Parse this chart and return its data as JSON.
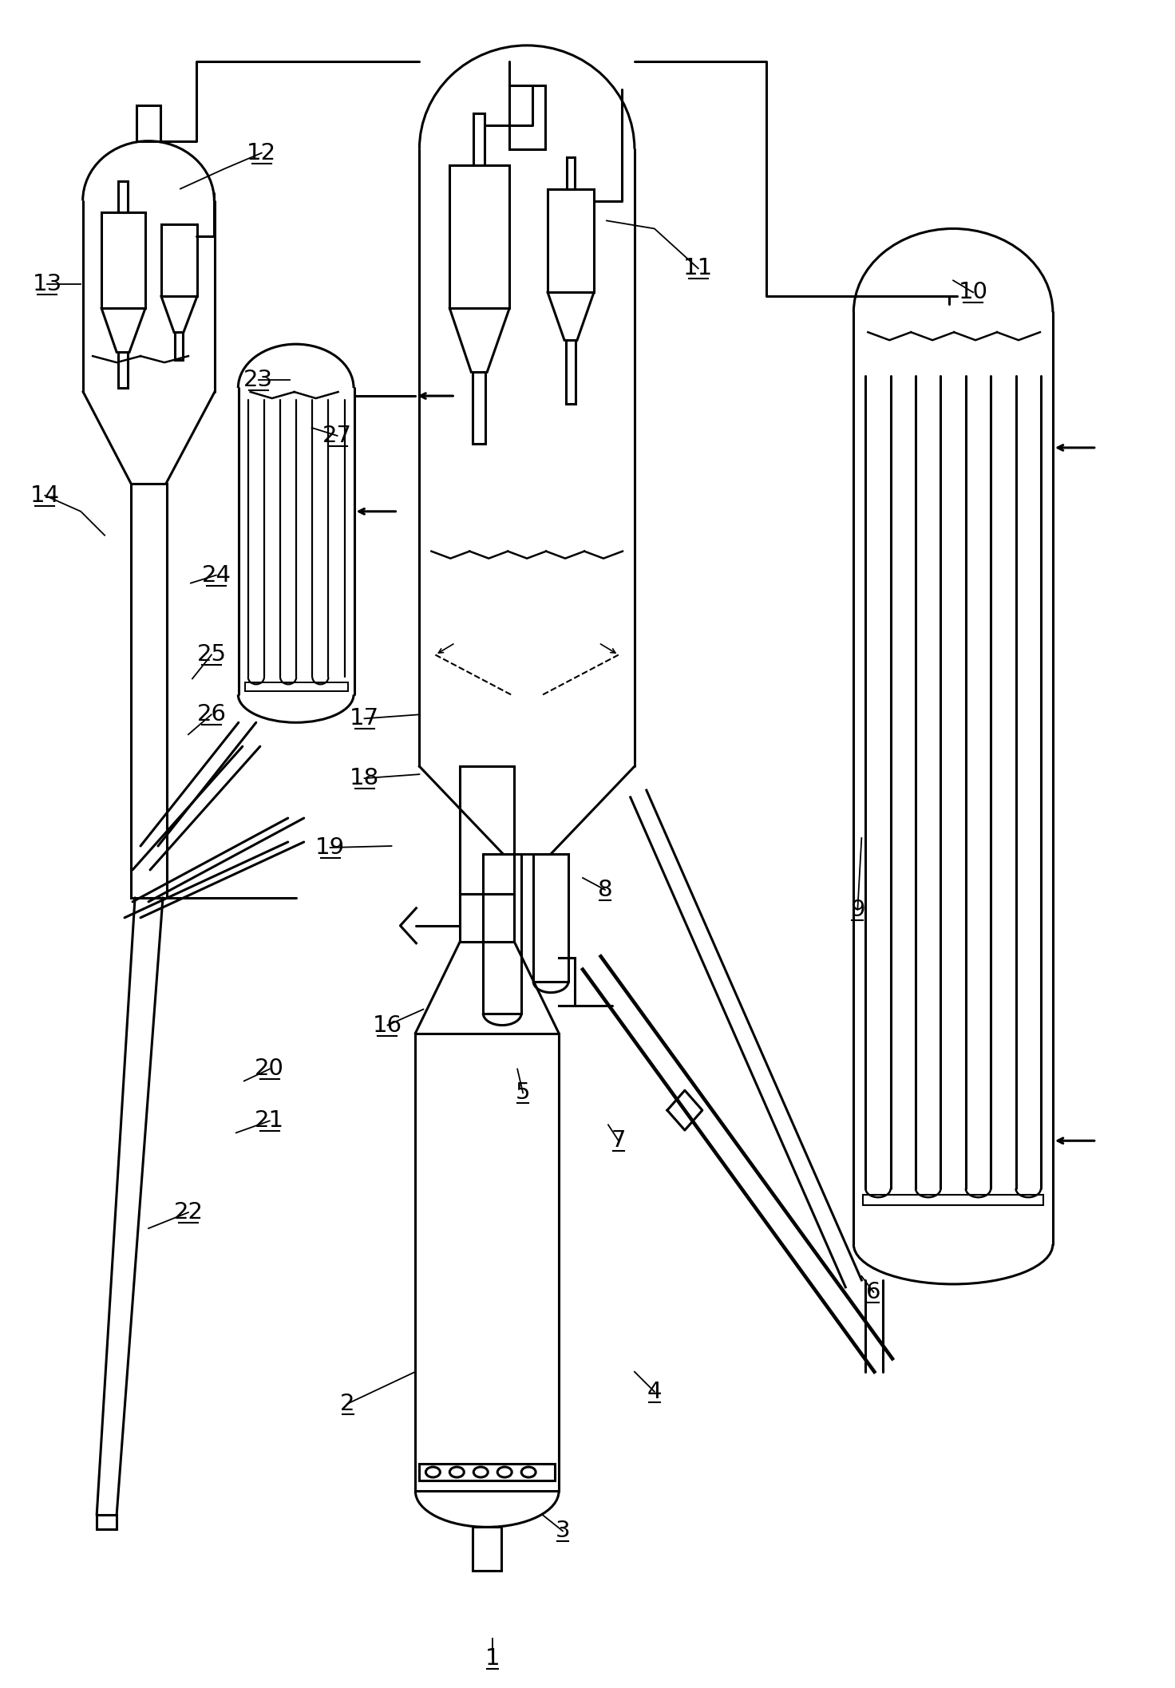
{
  "bg_color": "#ffffff",
  "line_color": "#000000",
  "lw": 2.2,
  "fig_width": 14.72,
  "fig_height": 21.15
}
